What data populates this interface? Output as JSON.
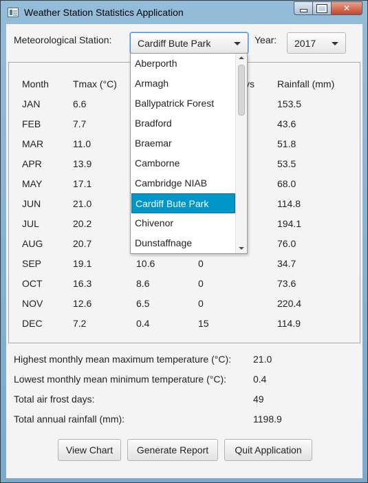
{
  "window": {
    "title": "Weather Station Statistics Application",
    "controls": {
      "minimize": "minimize",
      "maximize": "maximize",
      "close": "✕"
    }
  },
  "filters": {
    "station_label": "Meteorological Station:",
    "station_selected": "Cardiff Bute Park",
    "year_label": "Year:",
    "year_selected": "2017"
  },
  "table": {
    "headers": [
      "Month",
      "Tmax (°C)",
      "",
      "ys",
      "Rainfall (mm)"
    ],
    "rows": [
      [
        "JAN",
        "6.6",
        "",
        "",
        "153.5"
      ],
      [
        "FEB",
        "7.7",
        "",
        "",
        "43.6"
      ],
      [
        "MAR",
        "11.0",
        "",
        "",
        "51.8"
      ],
      [
        "APR",
        "13.9",
        "",
        "",
        "53.5"
      ],
      [
        "MAY",
        "17.1",
        "",
        "",
        "68.0"
      ],
      [
        "JUN",
        "21.0",
        "",
        "",
        "114.8"
      ],
      [
        "JUL",
        "20.2",
        "",
        "",
        "194.1"
      ],
      [
        "AUG",
        "20.7",
        "",
        "",
        "76.0"
      ],
      [
        "SEP",
        "19.1",
        "10.6",
        "0",
        "34.7"
      ],
      [
        "OCT",
        "16.3",
        "8.6",
        "0",
        "73.6"
      ],
      [
        "NOV",
        "12.6",
        "6.5",
        "0",
        "220.4"
      ],
      [
        "DEC",
        "7.2",
        "0.4",
        "15",
        "114.9"
      ]
    ]
  },
  "summary": [
    {
      "label": "Highest monthly mean maximum temperature (°C):",
      "value": "21.0"
    },
    {
      "label": "Lowest monthly mean minimum temperature (°C):",
      "value": "0.4"
    },
    {
      "label": "Total air frost days:",
      "value": "49"
    },
    {
      "label": "Total annual rainfall (mm):",
      "value": "1198.9"
    }
  ],
  "buttons": {
    "view_chart": "View Chart",
    "generate_report": "Generate Report",
    "quit": "Quit Application"
  },
  "station_dropdown": {
    "items": [
      "Aberporth",
      "Armagh",
      "Ballypatrick Forest",
      "Bradford",
      "Braemar",
      "Camborne",
      "Cambridge NIAB",
      "Cardiff Bute Park",
      "Chivenor",
      "Dunstaffnage"
    ],
    "selected_index": 7
  },
  "colors": {
    "selection": "#0096c9",
    "focus": "#3e8ede"
  }
}
